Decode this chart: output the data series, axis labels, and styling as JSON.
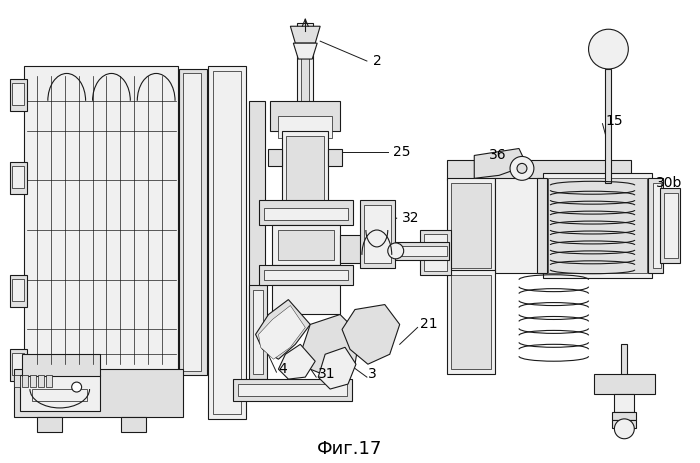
{
  "caption": "Фиг.17",
  "caption_fontsize": 13,
  "background_color": "#ffffff",
  "figsize": [
    7.0,
    4.63
  ],
  "dpi": 100,
  "line_color": "#1a1a1a",
  "line_width": 0.8,
  "fill_light": "#f0f0f0",
  "fill_mid": "#e0e0e0",
  "fill_dark": "#c8c8c8"
}
